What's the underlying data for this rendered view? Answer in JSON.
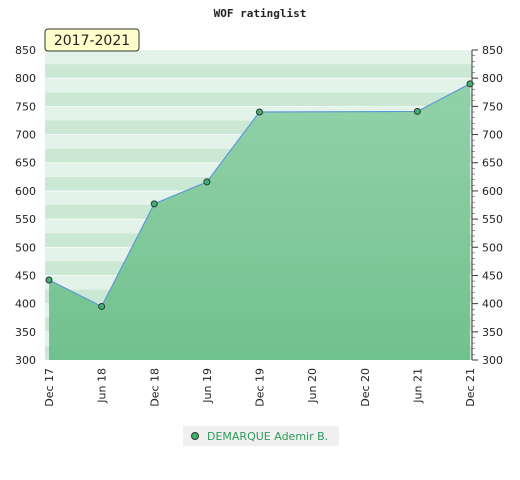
{
  "chart_data": {
    "type": "line",
    "title": "WOF ratinglist",
    "annotation": "2017-2021",
    "categories": [
      "Dec 17",
      "Jun 18",
      "Dec 18",
      "Jun 19",
      "Dec 19",
      "Jun 20",
      "Dec 20",
      "Jun 21",
      "Dec 21"
    ],
    "series": [
      {
        "name": "DEMARQUE Ademir B.",
        "color": "#5b9bd5",
        "x": [
          "Dec 17",
          "Jun 18",
          "Dec 18",
          "Jun 19",
          "Dec 19",
          "Jun 21",
          "Dec 21"
        ],
        "values": [
          442,
          395,
          577,
          616,
          740,
          741,
          790
        ]
      }
    ],
    "ylim": [
      300,
      850
    ],
    "yticks": [
      300,
      350,
      400,
      450,
      500,
      550,
      600,
      650,
      700,
      750,
      800,
      850
    ],
    "grid": true
  }
}
